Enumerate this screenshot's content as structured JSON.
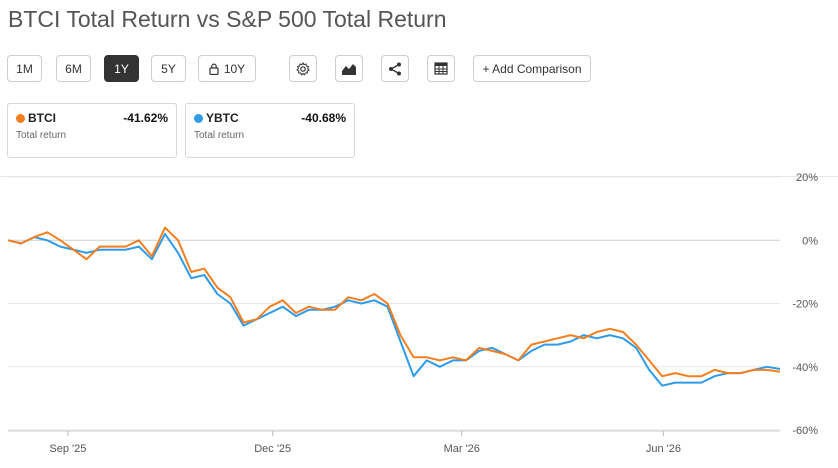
{
  "header": {
    "title": "BTCI Total Return vs S&P 500 Total Return"
  },
  "toolbar": {
    "ranges": [
      "1M",
      "6M",
      "1Y",
      "5Y",
      "10Y"
    ],
    "active_range": "1Y",
    "add_comparison": "+ Add Comparison",
    "icons": [
      "lock-icon",
      "settings-gear-icon",
      "chart-type-icon",
      "share-icon",
      "table-icon"
    ]
  },
  "cards": [
    {
      "name": "BTCI",
      "value": "-41.62%",
      "sub": "Total return",
      "color": "#F57F20"
    },
    {
      "name": "YBTC",
      "value": "-40.68%",
      "sub": "Total return",
      "color": "#2E9BEB"
    }
  ],
  "chart_data": {
    "type": "line",
    "title": "",
    "xlabel": "",
    "ylabel": "",
    "x_tick_labels": [
      "Sep '25",
      "Dec '25",
      "Mar '26",
      "Jun '26"
    ],
    "y_tick_labels": [
      "20%",
      "0%",
      "-20%",
      "-40%",
      "-60%"
    ],
    "y_ticks": [
      20,
      0,
      -20,
      -40,
      -60
    ],
    "ylim": [
      -60,
      20
    ],
    "x_tick_index": [
      19,
      84,
      144,
      208
    ],
    "y_axis_side": "right",
    "grid": "horizontal",
    "colors": {
      "BTCI": "#F57F20",
      "YBTC": "#2E9BEB"
    },
    "x_count": 245,
    "series": [
      {
        "name": "BTCI",
        "color": "#F57F20",
        "points": [
          [
            0,
            0
          ],
          [
            5,
            -1
          ],
          [
            10,
            1
          ],
          [
            15,
            2.5
          ],
          [
            20,
            0
          ],
          [
            25,
            -3
          ],
          [
            30,
            -6
          ],
          [
            35,
            -2
          ],
          [
            40,
            -2
          ],
          [
            45,
            -2
          ],
          [
            50,
            0
          ],
          [
            55,
            -5
          ],
          [
            60,
            4
          ],
          [
            65,
            0
          ],
          [
            70,
            -10
          ],
          [
            75,
            -9
          ],
          [
            80,
            -15
          ],
          [
            85,
            -18
          ],
          [
            90,
            -26
          ],
          [
            95,
            -25
          ],
          [
            100,
            -21
          ],
          [
            105,
            -19
          ],
          [
            110,
            -23
          ],
          [
            115,
            -21
          ],
          [
            120,
            -22
          ],
          [
            125,
            -22
          ],
          [
            130,
            -18
          ],
          [
            135,
            -19
          ],
          [
            140,
            -17
          ],
          [
            145,
            -20
          ],
          [
            150,
            -30
          ],
          [
            155,
            -37
          ],
          [
            160,
            -37
          ],
          [
            165,
            -38
          ],
          [
            170,
            -37
          ],
          [
            175,
            -38
          ],
          [
            180,
            -34
          ],
          [
            185,
            -35
          ],
          [
            190,
            -36
          ],
          [
            195,
            -38
          ],
          [
            200,
            -33
          ],
          [
            205,
            -32
          ],
          [
            210,
            -31
          ],
          [
            215,
            -30
          ],
          [
            220,
            -31
          ],
          [
            225,
            -29
          ],
          [
            230,
            -28
          ],
          [
            235,
            -29
          ],
          [
            240,
            -33
          ],
          [
            245,
            -38
          ],
          [
            250,
            -43
          ],
          [
            255,
            -42
          ],
          [
            260,
            -43
          ],
          [
            265,
            -43
          ],
          [
            270,
            -41
          ],
          [
            275,
            -42
          ],
          [
            280,
            -42
          ],
          [
            285,
            -41
          ],
          [
            290,
            -41
          ],
          [
            295,
            -41.6
          ]
        ]
      },
      {
        "name": "YBTC",
        "color": "#2E9BEB",
        "points": [
          [
            0,
            0
          ],
          [
            5,
            -1
          ],
          [
            10,
            1
          ],
          [
            15,
            0
          ],
          [
            20,
            -2
          ],
          [
            25,
            -3
          ],
          [
            30,
            -4
          ],
          [
            35,
            -3
          ],
          [
            40,
            -3
          ],
          [
            45,
            -3
          ],
          [
            50,
            -2
          ],
          [
            55,
            -6
          ],
          [
            60,
            2
          ],
          [
            65,
            -4
          ],
          [
            70,
            -12
          ],
          [
            75,
            -11
          ],
          [
            80,
            -17
          ],
          [
            85,
            -20
          ],
          [
            90,
            -27
          ],
          [
            95,
            -25
          ],
          [
            100,
            -23
          ],
          [
            105,
            -21
          ],
          [
            110,
            -24
          ],
          [
            115,
            -22
          ],
          [
            120,
            -22
          ],
          [
            125,
            -21
          ],
          [
            130,
            -19
          ],
          [
            135,
            -20
          ],
          [
            140,
            -19
          ],
          [
            145,
            -21
          ],
          [
            150,
            -32
          ],
          [
            155,
            -43
          ],
          [
            160,
            -38
          ],
          [
            165,
            -40
          ],
          [
            170,
            -38
          ],
          [
            175,
            -38
          ],
          [
            180,
            -35
          ],
          [
            185,
            -34
          ],
          [
            190,
            -36
          ],
          [
            195,
            -38
          ],
          [
            200,
            -35
          ],
          [
            205,
            -33
          ],
          [
            210,
            -33
          ],
          [
            215,
            -32
          ],
          [
            220,
            -30
          ],
          [
            225,
            -31
          ],
          [
            230,
            -30
          ],
          [
            235,
            -31
          ],
          [
            240,
            -34
          ],
          [
            245,
            -41
          ],
          [
            250,
            -46
          ],
          [
            255,
            -45
          ],
          [
            260,
            -45
          ],
          [
            265,
            -45
          ],
          [
            270,
            -43
          ],
          [
            275,
            -42
          ],
          [
            280,
            -42
          ],
          [
            285,
            -41
          ],
          [
            290,
            -40
          ],
          [
            295,
            -40.7
          ]
        ]
      }
    ]
  }
}
